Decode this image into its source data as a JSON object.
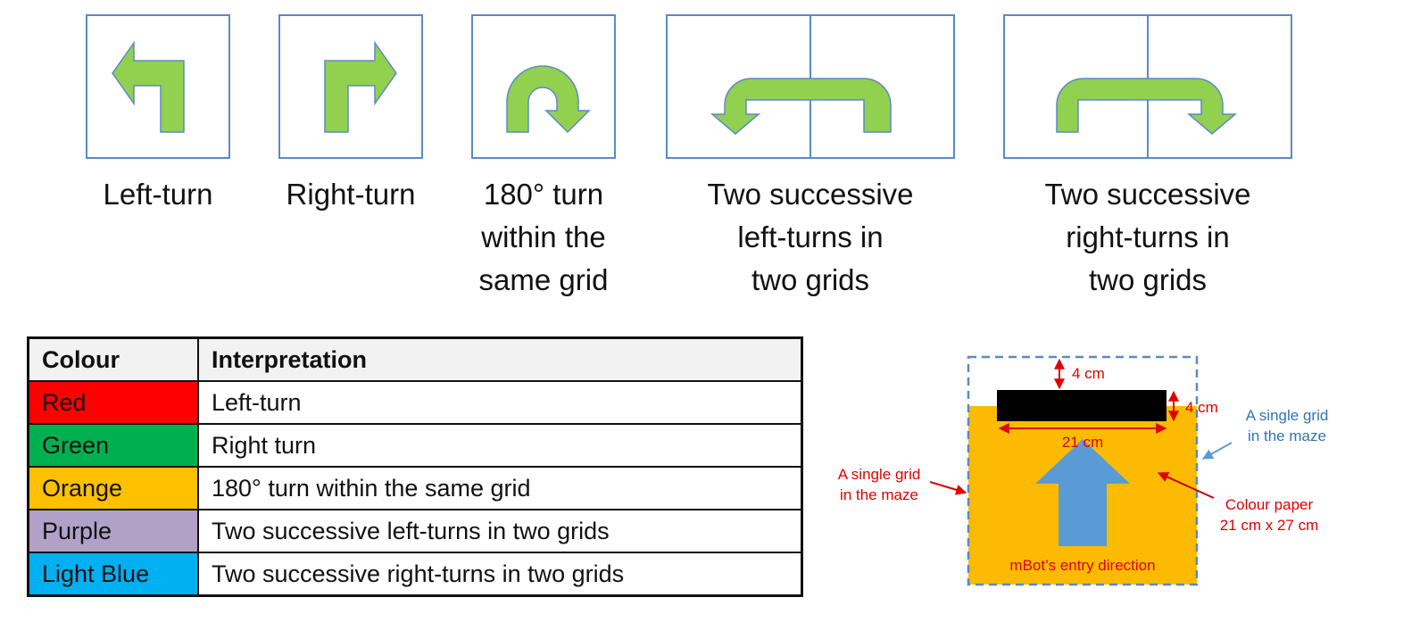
{
  "colors": {
    "arrow_fill": "#92d050",
    "arrow_stroke": "#5a8ac6",
    "grid_box": "#5a8ac6",
    "paper": "#fcbb00",
    "entry_arrow": "#5b9bd5",
    "dimension": "#e00000",
    "grid_label": "#2e75b6"
  },
  "turns": [
    {
      "id": "left",
      "icon": "left-turn-icon",
      "caption": "Left-turn"
    },
    {
      "id": "right",
      "icon": "right-turn-icon",
      "caption": "Right-turn"
    },
    {
      "id": "u",
      "icon": "u-turn-icon",
      "caption": "180° turn\nwithin the\nsame grid"
    },
    {
      "id": "two-left",
      "icon": "two-left-turns-icon",
      "caption": "Two successive\nleft-turns in\ntwo grids"
    },
    {
      "id": "two-right",
      "icon": "two-right-turns-icon",
      "caption": "Two successive\nright-turns in\ntwo grids"
    }
  ],
  "table": {
    "headers": [
      "Colour",
      "Interpretation"
    ],
    "rows": [
      {
        "colour": "Red",
        "swatch": "#ff0000",
        "interpretation": "Left-turn"
      },
      {
        "colour": "Green",
        "swatch": "#00b050",
        "interpretation": "Right turn"
      },
      {
        "colour": "Orange",
        "swatch": "#ffc000",
        "interpretation": "180° turn within the same grid"
      },
      {
        "colour": "Purple",
        "swatch": "#b1a0c7",
        "interpretation": "Two successive left-turns in two grids"
      },
      {
        "colour": "Light Blue",
        "swatch": "#00b0f0",
        "interpretation": "Two successive right-turns in two grids"
      }
    ]
  },
  "grid_diagram": {
    "top_gap_label": "4 cm",
    "strip_height_label": "4 cm",
    "strip_width_label": "21 cm",
    "left_label_line1": "A single grid",
    "left_label_line2": "in the maze",
    "right_label_line1": "A single grid",
    "right_label_line2": "in the maze",
    "paper_label_line1": "Colour paper",
    "paper_label_line2": "21 cm x 27 cm",
    "entry_label": "mBot’s entry direction"
  }
}
